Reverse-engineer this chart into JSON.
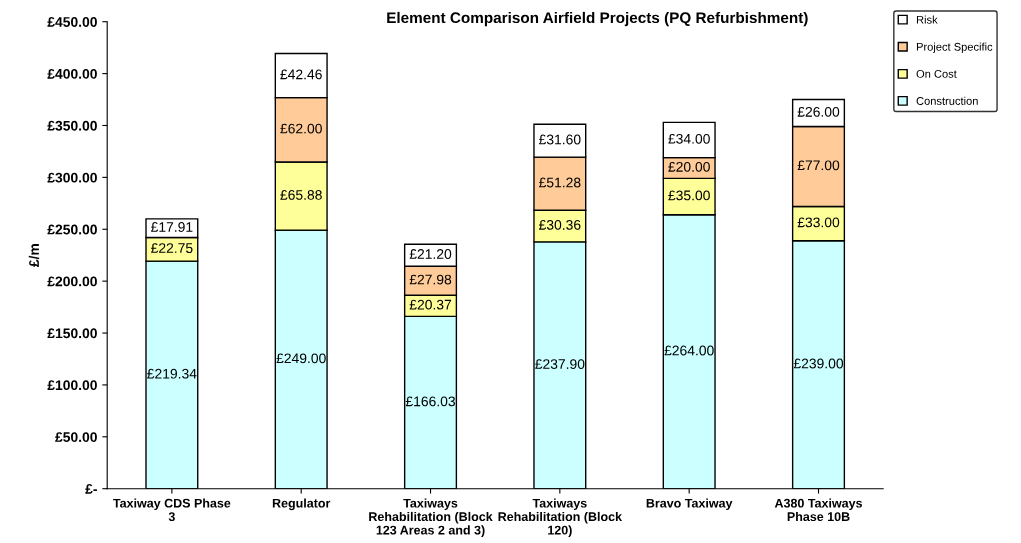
{
  "chart_data": {
    "type": "bar",
    "stacked": true,
    "title": "Element Comparison Airfield Projects (PQ Refurbishment)",
    "ylabel": "£/m",
    "categories": [
      "Taxiway CDS Phase\n3",
      "Regulator",
      "Taxiways\nRehabilitation (Block\n123 Areas 2 and 3)",
      "Taxiways\nRehabilitation (Block\n120)",
      "Bravo Taxiway",
      "A380 Taxiways\nPhase 10B"
    ],
    "series": [
      {
        "name": "Construction",
        "color": "#ccffff",
        "values": [
          219.34,
          249.0,
          166.03,
          237.9,
          264.0,
          239.0
        ],
        "value_labels": [
          "£219.34",
          "£249.00",
          "£166.03",
          "£237.90",
          "£264.00",
          "£239.00"
        ]
      },
      {
        "name": "On Cost",
        "color": "#ffff99",
        "values": [
          22.75,
          65.88,
          20.37,
          30.36,
          35.0,
          33.0
        ],
        "value_labels": [
          "£22.75",
          "£65.88",
          "£20.37",
          "£30.36",
          "£35.00",
          "£33.00"
        ]
      },
      {
        "name": "Project Specific",
        "color": "#ffcc99",
        "values": [
          null,
          62.0,
          27.98,
          51.28,
          20.0,
          77.0
        ],
        "value_labels": [
          null,
          "£62.00",
          "£27.98",
          "£51.28",
          "£20.00",
          "£77.00"
        ]
      },
      {
        "name": "Risk",
        "color": "#ffffff",
        "values": [
          17.91,
          42.46,
          21.2,
          31.6,
          34.0,
          26.0
        ],
        "value_labels": [
          "£17.91",
          "£42.46",
          "£21.20",
          "£31.60",
          "£34.00",
          "£26.00"
        ]
      }
    ],
    "ylim": [
      0,
      450
    ],
    "yticks": [
      {
        "value": 0,
        "label": "£-"
      },
      {
        "value": 50,
        "label": "£50.00"
      },
      {
        "value": 100,
        "label": "£100.00"
      },
      {
        "value": 150,
        "label": "£150.00"
      },
      {
        "value": 200,
        "label": "£200.00"
      },
      {
        "value": 250,
        "label": "£250.00"
      },
      {
        "value": 300,
        "label": "£300.00"
      },
      {
        "value": 350,
        "label": "£350.00"
      },
      {
        "value": 400,
        "label": "£400.00"
      },
      {
        "value": 450,
        "label": "£450.00"
      }
    ],
    "grid": false,
    "legend": "top right"
  }
}
